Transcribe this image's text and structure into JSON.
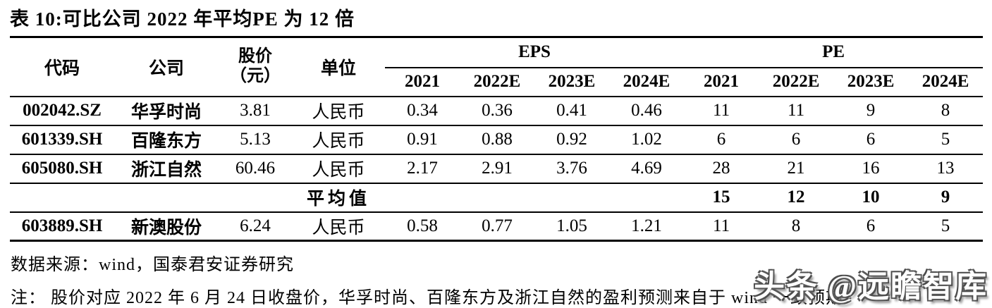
{
  "title": "表 10:可比公司 2022 年平均PE 为 12 倍",
  "table": {
    "headers": {
      "code": "代码",
      "company": "公司",
      "price_line1": "股价",
      "price_line2": "（元）",
      "unit": "单位",
      "eps_group": "EPS",
      "pe_group": "PE",
      "eps_years": [
        "2021",
        "2022E",
        "2023E",
        "2024E"
      ],
      "pe_years": [
        "2021",
        "2022E",
        "2023E",
        "2024E"
      ]
    },
    "rows": [
      {
        "code": "002042.SZ",
        "company": "华孚时尚",
        "price": "3.81",
        "unit": "人民币",
        "eps": [
          "0.34",
          "0.36",
          "0.41",
          "0.46"
        ],
        "pe": [
          "11",
          "11",
          "9",
          "8"
        ]
      },
      {
        "code": "601339.SH",
        "company": "百隆东方",
        "price": "5.13",
        "unit": "人民币",
        "eps": [
          "0.91",
          "0.88",
          "0.92",
          "1.02"
        ],
        "pe": [
          "6",
          "6",
          "6",
          "5"
        ]
      },
      {
        "code": "605080.SH",
        "company": "浙江自然",
        "price": "60.46",
        "unit": "人民币",
        "eps": [
          "2.17",
          "2.91",
          "3.76",
          "4.69"
        ],
        "pe": [
          "28",
          "21",
          "16",
          "13"
        ]
      }
    ],
    "average_row": {
      "label": "平均值",
      "pe": [
        "15",
        "12",
        "10",
        "9"
      ]
    },
    "extra_row": {
      "code": "603889.SH",
      "company": "新澳股份",
      "price": "6.24",
      "unit": "人民币",
      "eps": [
        "0.58",
        "0.77",
        "1.05",
        "1.21"
      ],
      "pe": [
        "11",
        "8",
        "6",
        "5"
      ]
    }
  },
  "footer": {
    "source": "数据来源：wind，国泰君安证券研究",
    "note": "注： 股价对应 2022 年 6 月 24 日收盘价，华孚时尚、百隆东方及浙江自然的盈利预测来自于 wind 一致预期"
  },
  "watermark": "头条 @远瞻智库",
  "colors": {
    "text": "#000000",
    "background": "#ffffff",
    "watermark_fill": "#ffffff",
    "watermark_edge": "#4d4d4d"
  }
}
